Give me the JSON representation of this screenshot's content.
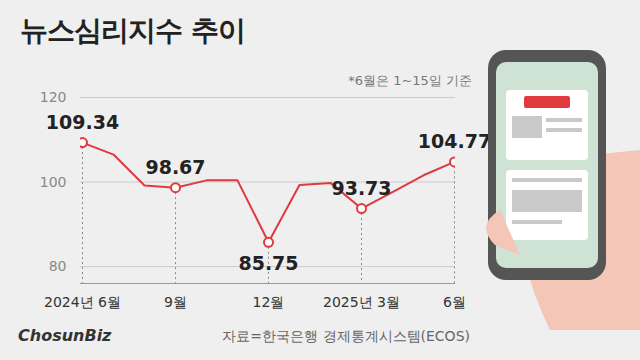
{
  "chart_data": {
    "type": "line",
    "title": "뉴스심리지수 추이",
    "note": "*6월은 1~15일 기준",
    "source": "자료=한국은행 경제통계시스템(ECOS)",
    "brand": "ChosunBiz",
    "categories": [
      "2024년 6월",
      null,
      null,
      "9월",
      null,
      null,
      "12월",
      null,
      null,
      "2025년 3월",
      null,
      null,
      "6월"
    ],
    "values": [
      109.34,
      106.5,
      99.2,
      98.67,
      100.4,
      100.4,
      85.75,
      99.3,
      99.8,
      93.73,
      97.6,
      101.6,
      104.77
    ],
    "value_labels": [
      "109.34",
      null,
      null,
      "98.67",
      null,
      null,
      "85.75",
      null,
      null,
      "93.73",
      null,
      null,
      "104.77"
    ],
    "color": "#e03a3e",
    "marker": "circle",
    "ylim": [
      76,
      120
    ],
    "yticks": [
      80,
      100,
      120
    ],
    "grid": true
  }
}
